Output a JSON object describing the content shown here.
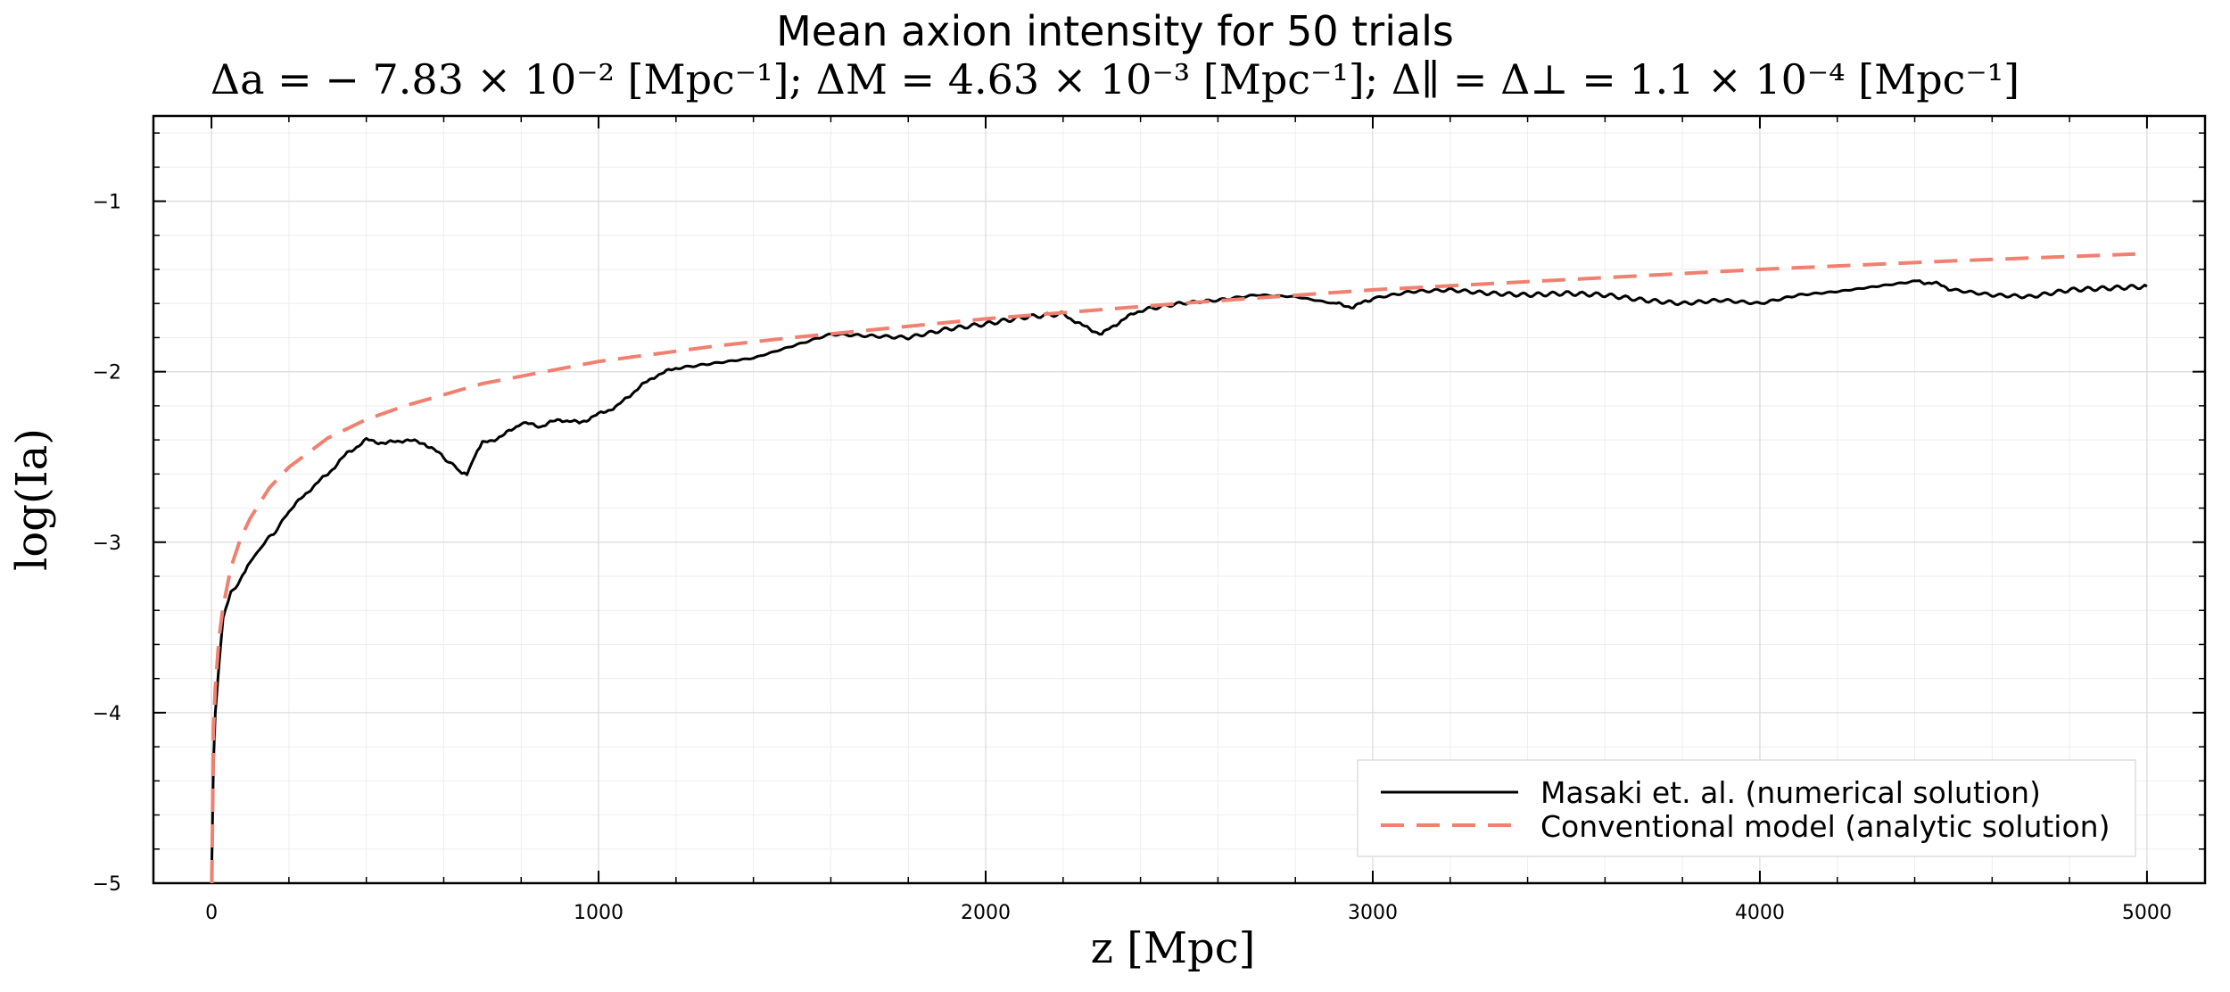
{
  "chart_data": {
    "type": "line",
    "title": "Mean axion intensity for 50 trials",
    "subtitle": "Δa = − 7.83 × 10⁻² [Mpc⁻¹]; ΔM = 4.63 × 10⁻³ [Mpc⁻¹]; Δ∥ = Δ⊥ = 1.1 × 10⁻⁴ [Mpc⁻¹]",
    "xlabel": "z [Mpc]",
    "ylabel": "log(Ia)",
    "xlim": [
      -150,
      5150
    ],
    "ylim": [
      -5,
      -0.5
    ],
    "x_ticks": [
      0,
      1000,
      2000,
      3000,
      4000,
      5000
    ],
    "x_tick_labels": [
      "0",
      "1000",
      "2000",
      "3000",
      "4000",
      "5000"
    ],
    "y_ticks": [
      -5,
      -4,
      -3,
      -2,
      -1
    ],
    "y_tick_labels": [
      "−5",
      "−4",
      "−3",
      "−2",
      "−1"
    ],
    "grid": true,
    "legend_position": "bottom-right",
    "series": [
      {
        "name": "Masaki et. al. (numerical solution)",
        "color": "#000000",
        "style": "solid",
        "x": [
          0,
          5,
          10,
          20,
          30,
          50,
          80,
          100,
          130,
          160,
          200,
          250,
          300,
          350,
          400,
          450,
          500,
          550,
          600,
          640,
          660,
          680,
          700,
          750,
          800,
          850,
          900,
          950,
          1000,
          1050,
          1100,
          1150,
          1200,
          1300,
          1400,
          1500,
          1600,
          1700,
          1800,
          1900,
          2000,
          2100,
          2200,
          2250,
          2300,
          2350,
          2400,
          2500,
          2600,
          2700,
          2800,
          2900,
          2950,
          3000,
          3100,
          3200,
          3300,
          3400,
          3500,
          3600,
          3700,
          3800,
          3900,
          4000,
          4100,
          4200,
          4300,
          4400,
          4450,
          4500,
          4600,
          4700,
          4800,
          4900,
          5000
        ],
        "y": [
          -5.0,
          -4.3,
          -4.0,
          -3.7,
          -3.45,
          -3.3,
          -3.2,
          -3.12,
          -3.02,
          -2.95,
          -2.82,
          -2.7,
          -2.6,
          -2.48,
          -2.4,
          -2.42,
          -2.4,
          -2.42,
          -2.5,
          -2.58,
          -2.6,
          -2.5,
          -2.42,
          -2.38,
          -2.3,
          -2.32,
          -2.28,
          -2.3,
          -2.25,
          -2.2,
          -2.1,
          -2.02,
          -1.98,
          -1.95,
          -1.92,
          -1.85,
          -1.78,
          -1.79,
          -1.8,
          -1.75,
          -1.72,
          -1.68,
          -1.66,
          -1.73,
          -1.78,
          -1.7,
          -1.64,
          -1.6,
          -1.58,
          -1.55,
          -1.56,
          -1.6,
          -1.62,
          -1.57,
          -1.53,
          -1.52,
          -1.54,
          -1.55,
          -1.54,
          -1.55,
          -1.58,
          -1.6,
          -1.58,
          -1.6,
          -1.55,
          -1.53,
          -1.5,
          -1.47,
          -1.48,
          -1.52,
          -1.55,
          -1.56,
          -1.52,
          -1.51,
          -1.5
        ]
      },
      {
        "name": "Conventional model (analytic solution)",
        "color": "#F08070",
        "style": "dashed",
        "x": [
          1,
          5,
          10,
          20,
          30,
          50,
          75,
          100,
          150,
          200,
          300,
          400,
          500,
          700,
          1000,
          1300,
          1500,
          2000,
          2500,
          3000,
          3500,
          4000,
          4500,
          4970
        ],
        "y": [
          -5.0,
          -4.1,
          -3.85,
          -3.55,
          -3.38,
          -3.15,
          -2.98,
          -2.86,
          -2.68,
          -2.56,
          -2.39,
          -2.28,
          -2.2,
          -2.07,
          -1.94,
          -1.85,
          -1.8,
          -1.69,
          -1.6,
          -1.52,
          -1.46,
          -1.4,
          -1.35,
          -1.31
        ]
      }
    ]
  }
}
